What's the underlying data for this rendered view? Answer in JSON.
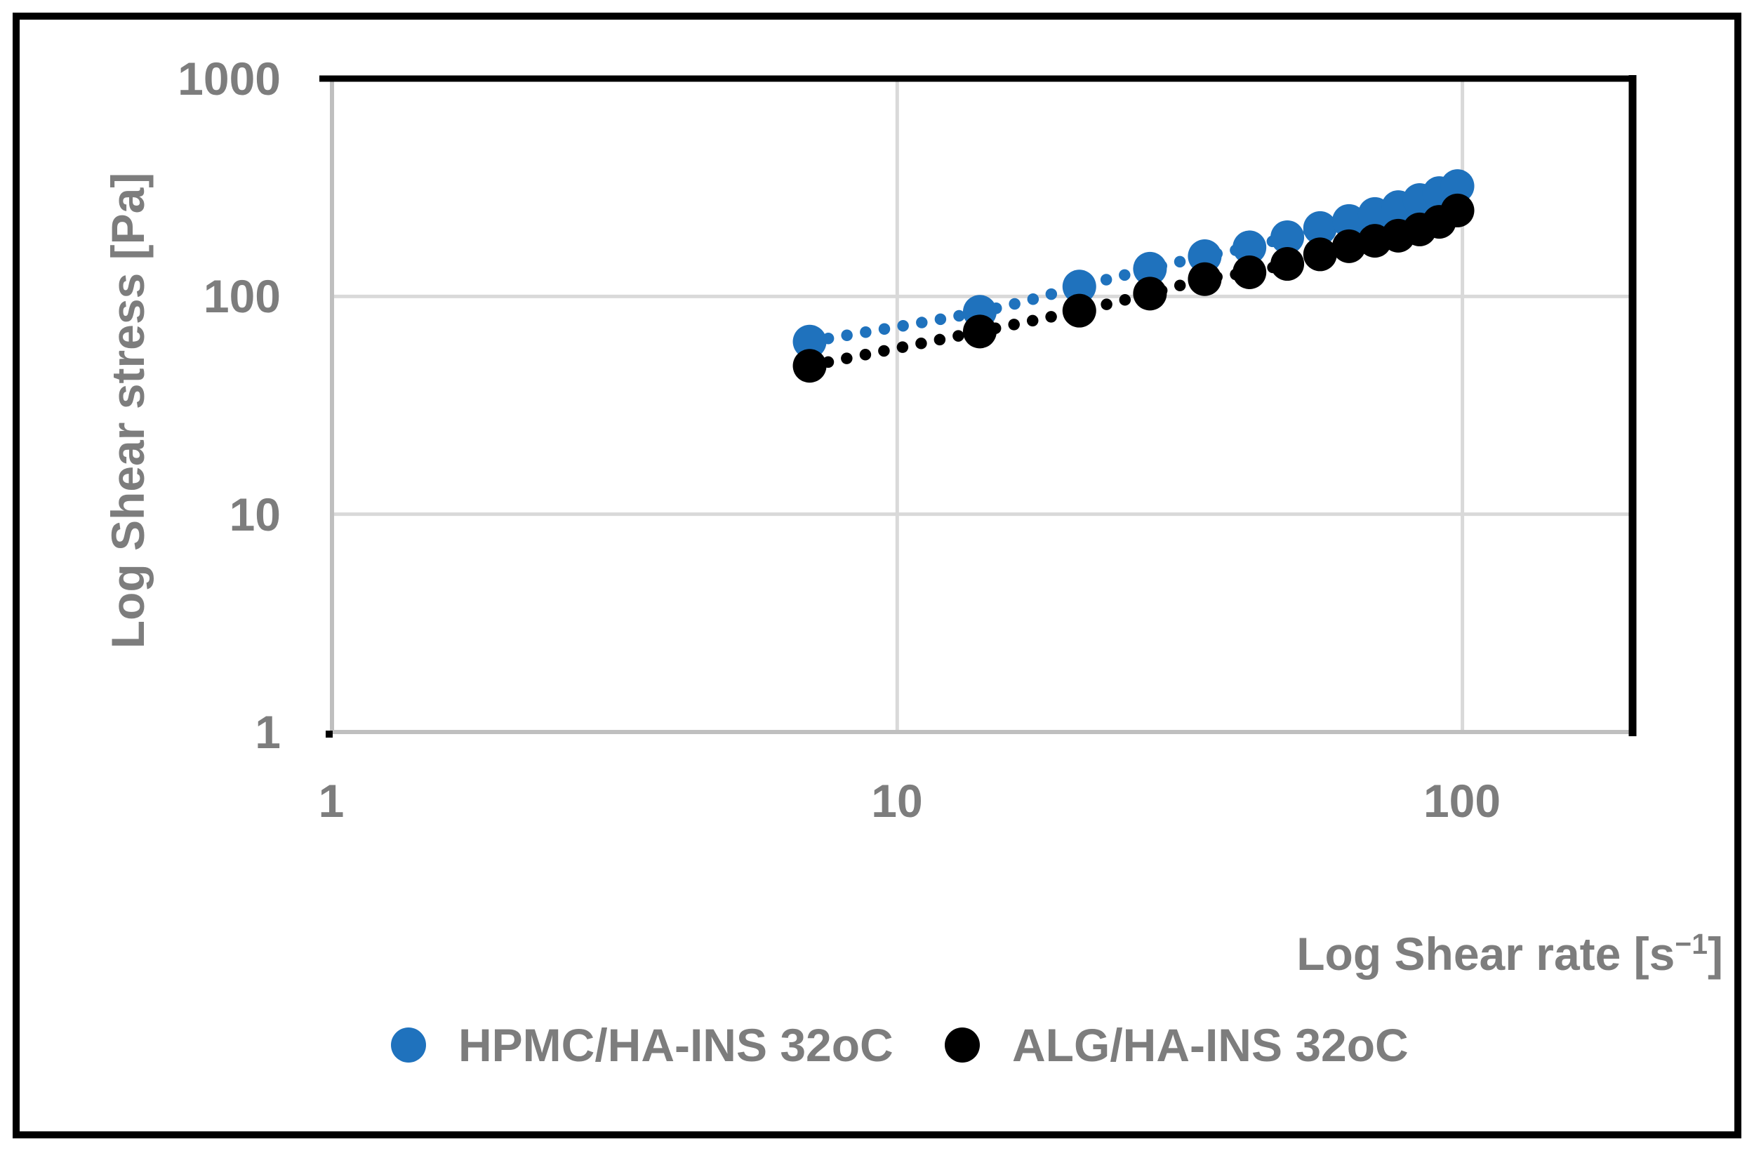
{
  "chart_data": {
    "type": "scatter",
    "title": "",
    "xlabel": "Log Shear rate [s⁻¹]",
    "ylabel": "Log Shear stress [Pa]",
    "x_scale": "log",
    "y_scale": "log",
    "xlim": [
      1,
      200
    ],
    "ylim": [
      1,
      1000
    ],
    "x_ticks": [
      1,
      10,
      100
    ],
    "y_ticks": [
      1,
      10,
      100,
      1000
    ],
    "grid": true,
    "legend_position": "bottom",
    "x": [
      7,
      14,
      21,
      28,
      35,
      42,
      49,
      56,
      63,
      70,
      77,
      84,
      91,
      98
    ],
    "series": [
      {
        "name": "HPMC/HA-INS 32oC",
        "color": "#1f72bd",
        "marker": "circle",
        "line_style": "dotted-spline",
        "values": [
          62,
          85,
          111,
          134,
          153,
          168,
          187,
          206,
          222,
          239,
          257,
          277,
          298,
          321
        ]
      },
      {
        "name": "ALG/HA-INS 32oC",
        "color": "#000000",
        "marker": "circle",
        "line_style": "dotted-spline",
        "values": [
          48,
          69,
          86,
          103,
          120,
          129,
          141,
          156,
          170,
          180,
          190,
          203,
          220,
          248
        ]
      }
    ]
  },
  "yaxis": {
    "title": "Log Shear stress [Pa]",
    "ticks": [
      "1000",
      "100",
      "10",
      "1"
    ]
  },
  "xaxis": {
    "title_pre": "Log Shear rate [s",
    "title_sup": "−1",
    "title_post": "]",
    "ticks": [
      "1",
      "10",
      "100"
    ]
  },
  "legend": {
    "items": [
      {
        "label": "HPMC/HA-INS 32oC",
        "color": "#1f72bd"
      },
      {
        "label": "ALG/HA-INS 32oC",
        "color": "#000000"
      }
    ]
  },
  "styles": {
    "text_color": "#7d7d7d",
    "gridline_color": "#d9d9d9",
    "axis_line_color": "#bfbfbf",
    "border_color": "#000000",
    "background": "#ffffff"
  }
}
